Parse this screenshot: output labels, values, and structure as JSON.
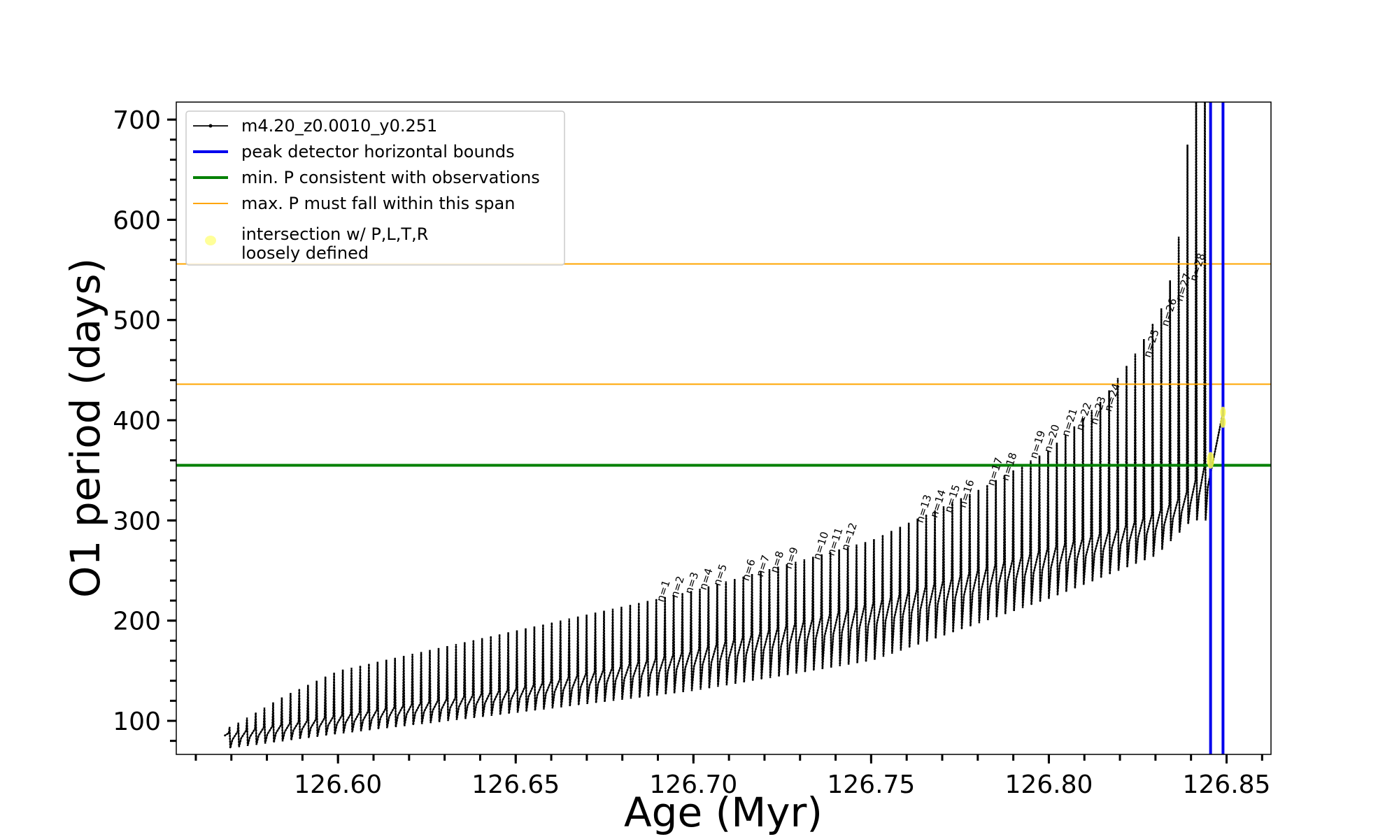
{
  "chart_data": {
    "type": "line",
    "xlabel": "Age (Myr)",
    "ylabel": "O1 period (days)",
    "xlim": [
      126.5545,
      126.8625
    ],
    "ylim": [
      66.5,
      717.5
    ],
    "x_ticks": [
      {
        "value": 126.6,
        "label": "126.60"
      },
      {
        "value": 126.65,
        "label": "126.65"
      },
      {
        "value": 126.7,
        "label": "126.70"
      },
      {
        "value": 126.75,
        "label": "126.75"
      },
      {
        "value": 126.8,
        "label": "126.80"
      },
      {
        "value": 126.85,
        "label": "126.85"
      }
    ],
    "x_minor_step": 0.01,
    "y_ticks": [
      {
        "value": 100,
        "label": "100"
      },
      {
        "value": 200,
        "label": "200"
      },
      {
        "value": 300,
        "label": "300"
      },
      {
        "value": 400,
        "label": "400"
      },
      {
        "value": 500,
        "label": "500"
      },
      {
        "value": 600,
        "label": "600"
      },
      {
        "value": 700,
        "label": "700"
      }
    ],
    "y_minor_step": 20,
    "grid": false,
    "legend_position": "upper-left",
    "legend": [
      {
        "label": "m4.20_z0.0010_y0.251",
        "kind": "line-dot",
        "color": "#000000"
      },
      {
        "label": "peak detector horizontal bounds",
        "kind": "line",
        "color": "#0000ee"
      },
      {
        "label": "min. P consistent with observations",
        "kind": "line",
        "color": "#008000"
      },
      {
        "label": "max. P must fall within this span",
        "kind": "line-thin",
        "color": "#ffa500"
      },
      {
        "label_lines": [
          "intersection w/ P,L,T,R",
          "loosely defined"
        ],
        "kind": "marker",
        "color": "#ffff99"
      }
    ],
    "series": [
      {
        "name": "m4.20_z0.0010_y0.251",
        "color": "#000000",
        "baseline": {
          "x": [
            126.568,
            126.6,
            126.65,
            126.7,
            126.75,
            126.78,
            126.8,
            126.82,
            126.83,
            126.838,
            126.843,
            126.8455,
            126.849
          ],
          "y": [
            85,
            103,
            130,
            168,
            215,
            248,
            270,
            290,
            305,
            322,
            345,
            362,
            408
          ]
        },
        "pulse_spacing": 0.00245,
        "pulse_start": 126.5695,
        "peaks": {
          "x": [
            126.568,
            126.585,
            126.6,
            126.65,
            126.7,
            126.75,
            126.78,
            126.8,
            126.815,
            126.825,
            126.833,
            126.8375,
            126.8405
          ],
          "y": [
            90,
            125,
            150,
            190,
            230,
            280,
            330,
            370,
            420,
            470,
            520,
            600,
            750
          ]
        },
        "dips": {
          "x": [
            126.568,
            126.6,
            126.65,
            126.7,
            126.75,
            126.8,
            126.83,
            126.84
          ],
          "y": [
            72,
            87,
            108,
            130,
            160,
            222,
            265,
            300
          ]
        }
      }
    ],
    "reference_lines": {
      "vertical_blue": [
        126.8455,
        126.849
      ],
      "horizontal_green": [
        355
      ],
      "horizontal_orange": [
        436,
        556
      ]
    },
    "intersection_markers": [
      {
        "x": 126.8455,
        "y": 360,
        "rx": 5,
        "ry": 12
      },
      {
        "x": 126.849,
        "y": 398,
        "rx": 4,
        "ry": 8
      },
      {
        "x": 126.849,
        "y": 408,
        "rx": 4,
        "ry": 8
      }
    ],
    "pulse_labels": [
      {
        "label": "n=1",
        "x": 126.6915,
        "y": 218
      },
      {
        "label": "n=2",
        "x": 126.6955,
        "y": 222
      },
      {
        "label": "n=3",
        "x": 126.6995,
        "y": 226
      },
      {
        "label": "n=4",
        "x": 126.7035,
        "y": 230
      },
      {
        "label": "n=5",
        "x": 126.7075,
        "y": 234
      },
      {
        "label": "n=6",
        "x": 126.7155,
        "y": 239
      },
      {
        "label": "n=7",
        "x": 126.7195,
        "y": 243
      },
      {
        "label": "n=8",
        "x": 126.7235,
        "y": 247
      },
      {
        "label": "n=9",
        "x": 126.7275,
        "y": 251
      },
      {
        "label": "n=10",
        "x": 126.7355,
        "y": 260
      },
      {
        "label": "n=11",
        "x": 126.7395,
        "y": 264
      },
      {
        "label": "n=12",
        "x": 126.7435,
        "y": 269
      },
      {
        "label": "n=13",
        "x": 126.7645,
        "y": 297
      },
      {
        "label": "n=14",
        "x": 126.7685,
        "y": 302
      },
      {
        "label": "n=15",
        "x": 126.7725,
        "y": 307
      },
      {
        "label": "n=16",
        "x": 126.7765,
        "y": 312
      },
      {
        "label": "n=17",
        "x": 126.7845,
        "y": 334
      },
      {
        "label": "n=18",
        "x": 126.7885,
        "y": 339
      },
      {
        "label": "n=19",
        "x": 126.7965,
        "y": 361
      },
      {
        "label": "n=20",
        "x": 126.8005,
        "y": 367
      },
      {
        "label": "n=21",
        "x": 126.8055,
        "y": 383
      },
      {
        "label": "n=22",
        "x": 126.8095,
        "y": 389
      },
      {
        "label": "n=23",
        "x": 126.8135,
        "y": 395
      },
      {
        "label": "n=24",
        "x": 126.8175,
        "y": 408
      },
      {
        "label": "n=25",
        "x": 126.8285,
        "y": 462
      },
      {
        "label": "n=26",
        "x": 126.8335,
        "y": 493
      },
      {
        "label": "n=27",
        "x": 126.8375,
        "y": 518
      },
      {
        "label": "n=28",
        "x": 126.8415,
        "y": 538
      }
    ]
  }
}
